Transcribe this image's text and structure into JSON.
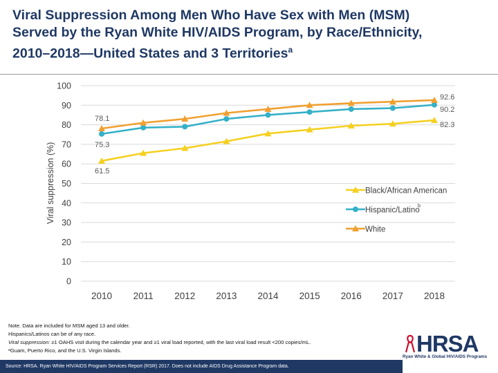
{
  "title": {
    "line1": "Viral Suppression Among Men Who Have Sex with Men (MSM)",
    "line2": "Served by the Ryan White HIV/AIDS Program, by Race/Ethnicity,",
    "line3_main": "2010–2018—United States and 3 Territories",
    "line3_sup": "a"
  },
  "chart_data": {
    "type": "line",
    "ylabel": "Viral suppression (%)",
    "xlabel": "",
    "ylim": [
      0,
      100
    ],
    "yticks": [
      0,
      10,
      20,
      30,
      40,
      50,
      60,
      70,
      80,
      90,
      100
    ],
    "x": [
      "2010",
      "2011",
      "2012",
      "2013",
      "2014",
      "2015",
      "2016",
      "2017",
      "2018"
    ],
    "series": [
      {
        "name": "Black/African American",
        "superscript": "",
        "color": "#f5d020",
        "marker": "triangle",
        "values": [
          61.5,
          65.5,
          68.0,
          71.5,
          75.5,
          77.5,
          79.5,
          80.5,
          82.3
        ],
        "start_label": "61.5",
        "end_label": "82.3"
      },
      {
        "name": "Hispanic/Latino",
        "superscript": "b",
        "color": "#35b0c8",
        "marker": "circle",
        "values": [
          75.3,
          78.5,
          79.0,
          83.0,
          85.0,
          86.5,
          88.0,
          88.5,
          90.2
        ],
        "start_label": "75.3",
        "end_label": "90.2"
      },
      {
        "name": "White",
        "superscript": "",
        "color": "#f0a030",
        "marker": "triangle",
        "values": [
          78.1,
          81.0,
          83.0,
          86.0,
          88.0,
          90.0,
          91.0,
          91.8,
          92.6
        ],
        "start_label": "78.1",
        "end_label": "92.6"
      }
    ],
    "legend_position": "lower-right"
  },
  "notes": {
    "line1": "Note. Data are included for MSM aged 13 and older.",
    "line2": "Hispanics/Latinos can be of any race.",
    "line3_label": "Viral suppression:",
    "line3_text": " ≥1 OAHS visit during the calendar year and ≥1 viral load reported, with the last viral load result <200 copies/mL.",
    "line4": "ᵃGuam, Puerto Rico, and the U.S. Virgin Islands."
  },
  "source": "Source: HRSA. Ryan White HIV/AIDS Program Services Report (RSR) 2017. Does not include AIDS Drug Assistance Program data.",
  "logo": {
    "word": "HRSA",
    "subtitle": "Ryan White & Global HIV/AIDS Programs"
  }
}
